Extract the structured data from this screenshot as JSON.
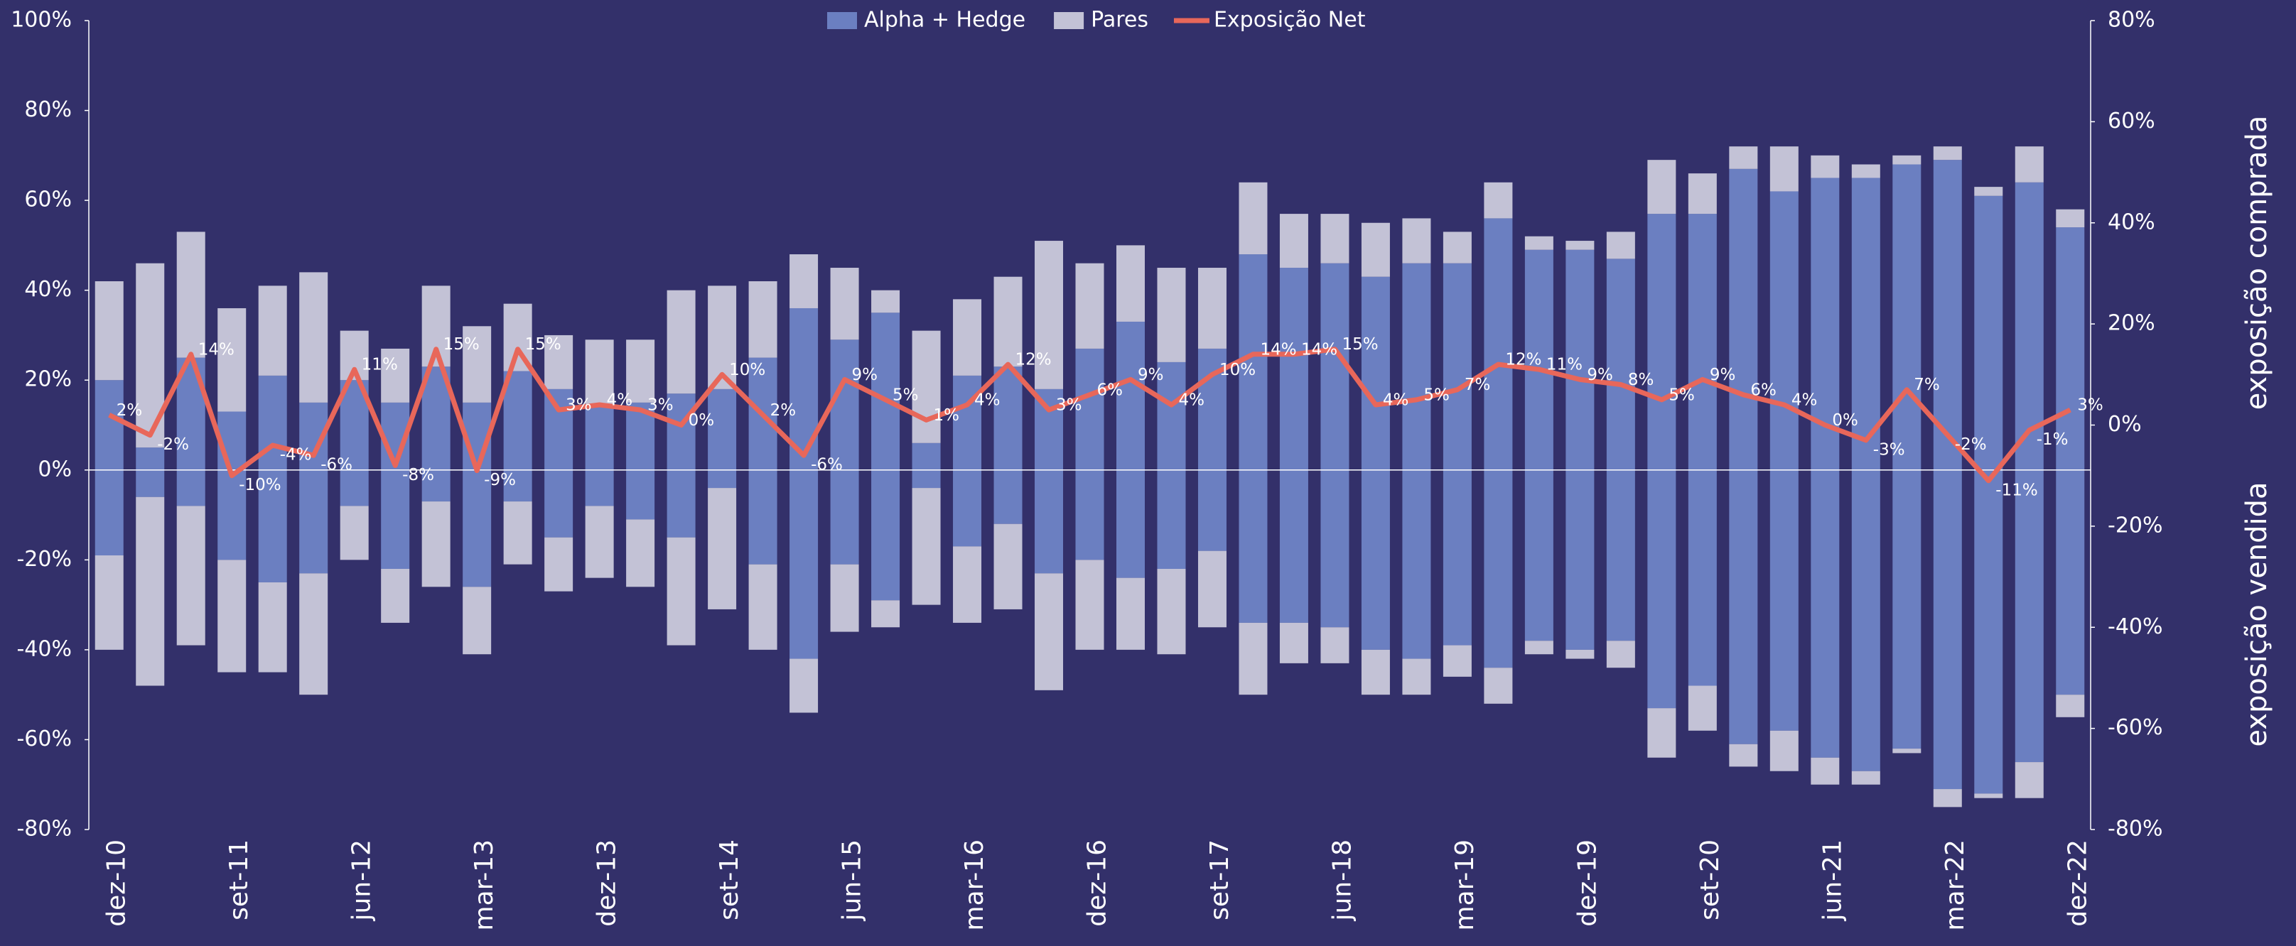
{
  "chart_data": {
    "type": "stacked-bar-line",
    "categories": [
      "dez-10",
      null,
      null,
      "set-11",
      null,
      null,
      "jun-12",
      null,
      null,
      "mar-13",
      null,
      null,
      "dez-13",
      null,
      null,
      "set-14",
      null,
      null,
      "jun-15",
      null,
      null,
      "mar-16",
      null,
      null,
      "dez-16",
      null,
      null,
      "set-17",
      null,
      null,
      "jun-18",
      null,
      null,
      "mar-19",
      null,
      null,
      "dez-19",
      null,
      null,
      "set-20",
      null,
      null,
      "jun-21",
      null,
      null,
      "mar-22",
      null,
      null,
      "dez-22"
    ],
    "series": [
      {
        "name": "Alpha + Hedge",
        "color": "#6b7fc1",
        "values": [
          20,
          5,
          25,
          13,
          21,
          15,
          20,
          15,
          23,
          15,
          22,
          18,
          14,
          15,
          17,
          18,
          25,
          36,
          29,
          35,
          6,
          21,
          23,
          18,
          27,
          33,
          24,
          27,
          48,
          45,
          46,
          43,
          46,
          46,
          56,
          49,
          49,
          47,
          57,
          57,
          67,
          62,
          65,
          65,
          68,
          69,
          61,
          64,
          54
        ],
        "short_values": [
          -19,
          -6,
          -8,
          -20,
          -25,
          -23,
          -8,
          -22,
          -7,
          -26,
          -7,
          -15,
          -8,
          -11,
          -15,
          -4,
          -21,
          -42,
          -21,
          -29,
          -4,
          -17,
          -12,
          -23,
          -20,
          -24,
          -22,
          -18,
          -34,
          -34,
          -35,
          -40,
          -42,
          -39,
          -44,
          -38,
          -40,
          -38,
          -53,
          -48,
          -61,
          -58,
          -64,
          -67,
          -62,
          -71,
          -72,
          -65,
          -50
        ]
      },
      {
        "name": "Pares",
        "color": "#c3c2d6",
        "values": [
          22,
          41,
          28,
          23,
          20,
          29,
          11,
          12,
          18,
          17,
          15,
          12,
          15,
          14,
          23,
          23,
          17,
          12,
          16,
          5,
          25,
          17,
          20,
          33,
          19,
          17,
          21,
          18,
          16,
          12,
          11,
          12,
          10,
          7,
          8,
          3,
          2,
          6,
          12,
          9,
          5,
          10,
          5,
          3,
          2,
          3,
          2,
          8,
          4
        ],
        "short_values": [
          -21,
          -42,
          -31,
          -25,
          -20,
          -27,
          -12,
          -12,
          -19,
          -15,
          -14,
          -12,
          -16,
          -15,
          -24,
          -27,
          -19,
          -12,
          -15,
          -6,
          -26,
          -17,
          -19,
          -26,
          -20,
          -16,
          -19,
          -17,
          -16,
          -9,
          -8,
          -10,
          -8,
          -7,
          -8,
          -3,
          -2,
          -6,
          -11,
          -10,
          -5,
          -9,
          -6,
          -3,
          -1,
          -4,
          -1,
          -8,
          -5
        ]
      },
      {
        "name": "Exposição Net",
        "color": "#e8675a",
        "axis": "y2",
        "values": [
          2,
          -2,
          14,
          -10,
          -4,
          -6,
          11,
          -8,
          15,
          -9,
          15,
          3,
          4,
          3,
          0,
          10,
          2,
          -6,
          9,
          5,
          1,
          4,
          12,
          3,
          6,
          9,
          4,
          10,
          14,
          14,
          15,
          4,
          5,
          7,
          12,
          11,
          9,
          8,
          5,
          9,
          6,
          4,
          0,
          -3,
          7,
          -2,
          -11,
          -1,
          3
        ],
        "value_labels": [
          "2%",
          "-2%",
          "14%",
          "-10%",
          "-4%",
          "-6%",
          "11%",
          "-8%",
          "15%",
          "-9%",
          "15%",
          "3%",
          "4%",
          "3%",
          "0%",
          "10%",
          "2%",
          "-6%",
          "9%",
          "5%",
          "1%",
          "4%",
          "12%",
          "3%",
          "6%",
          "9%",
          "4%",
          "10%",
          "14%",
          "14%",
          "15%",
          "4%",
          "5%",
          "7%",
          "12%",
          "11%",
          "9%",
          "8%",
          "5%",
          "9%",
          "6%",
          "4%",
          "0%",
          "-3%",
          "7%",
          "-2%",
          "-11%",
          "-1%",
          "3%"
        ]
      }
    ],
    "ylim": [
      -80,
      100
    ],
    "yticks": [
      {
        "value": -80,
        "label": "-80%"
      },
      {
        "value": -60,
        "label": "-60%"
      },
      {
        "value": -40,
        "label": "-40%"
      },
      {
        "value": -20,
        "label": "-20%"
      },
      {
        "value": 0,
        "label": "0%"
      },
      {
        "value": 20,
        "label": "20%"
      },
      {
        "value": 40,
        "label": "40%"
      },
      {
        "value": 60,
        "label": "60%"
      },
      {
        "value": 80,
        "label": "80%"
      },
      {
        "value": 100,
        "label": "100%"
      }
    ],
    "y2lim": [
      -80,
      80
    ],
    "y2ticks": [
      {
        "value": -80,
        "label": "-80%"
      },
      {
        "value": -60,
        "label": "-60%"
      },
      {
        "value": -40,
        "label": "-40%"
      },
      {
        "value": -20,
        "label": "-20%"
      },
      {
        "value": 0,
        "label": "0%"
      },
      {
        "value": 20,
        "label": "20%"
      },
      {
        "value": 40,
        "label": "40%"
      },
      {
        "value": 60,
        "label": "60%"
      },
      {
        "value": 80,
        "label": "80%"
      }
    ],
    "annotations": [
      "exposição comprada",
      "exposição vendida"
    ],
    "legend": "top"
  }
}
